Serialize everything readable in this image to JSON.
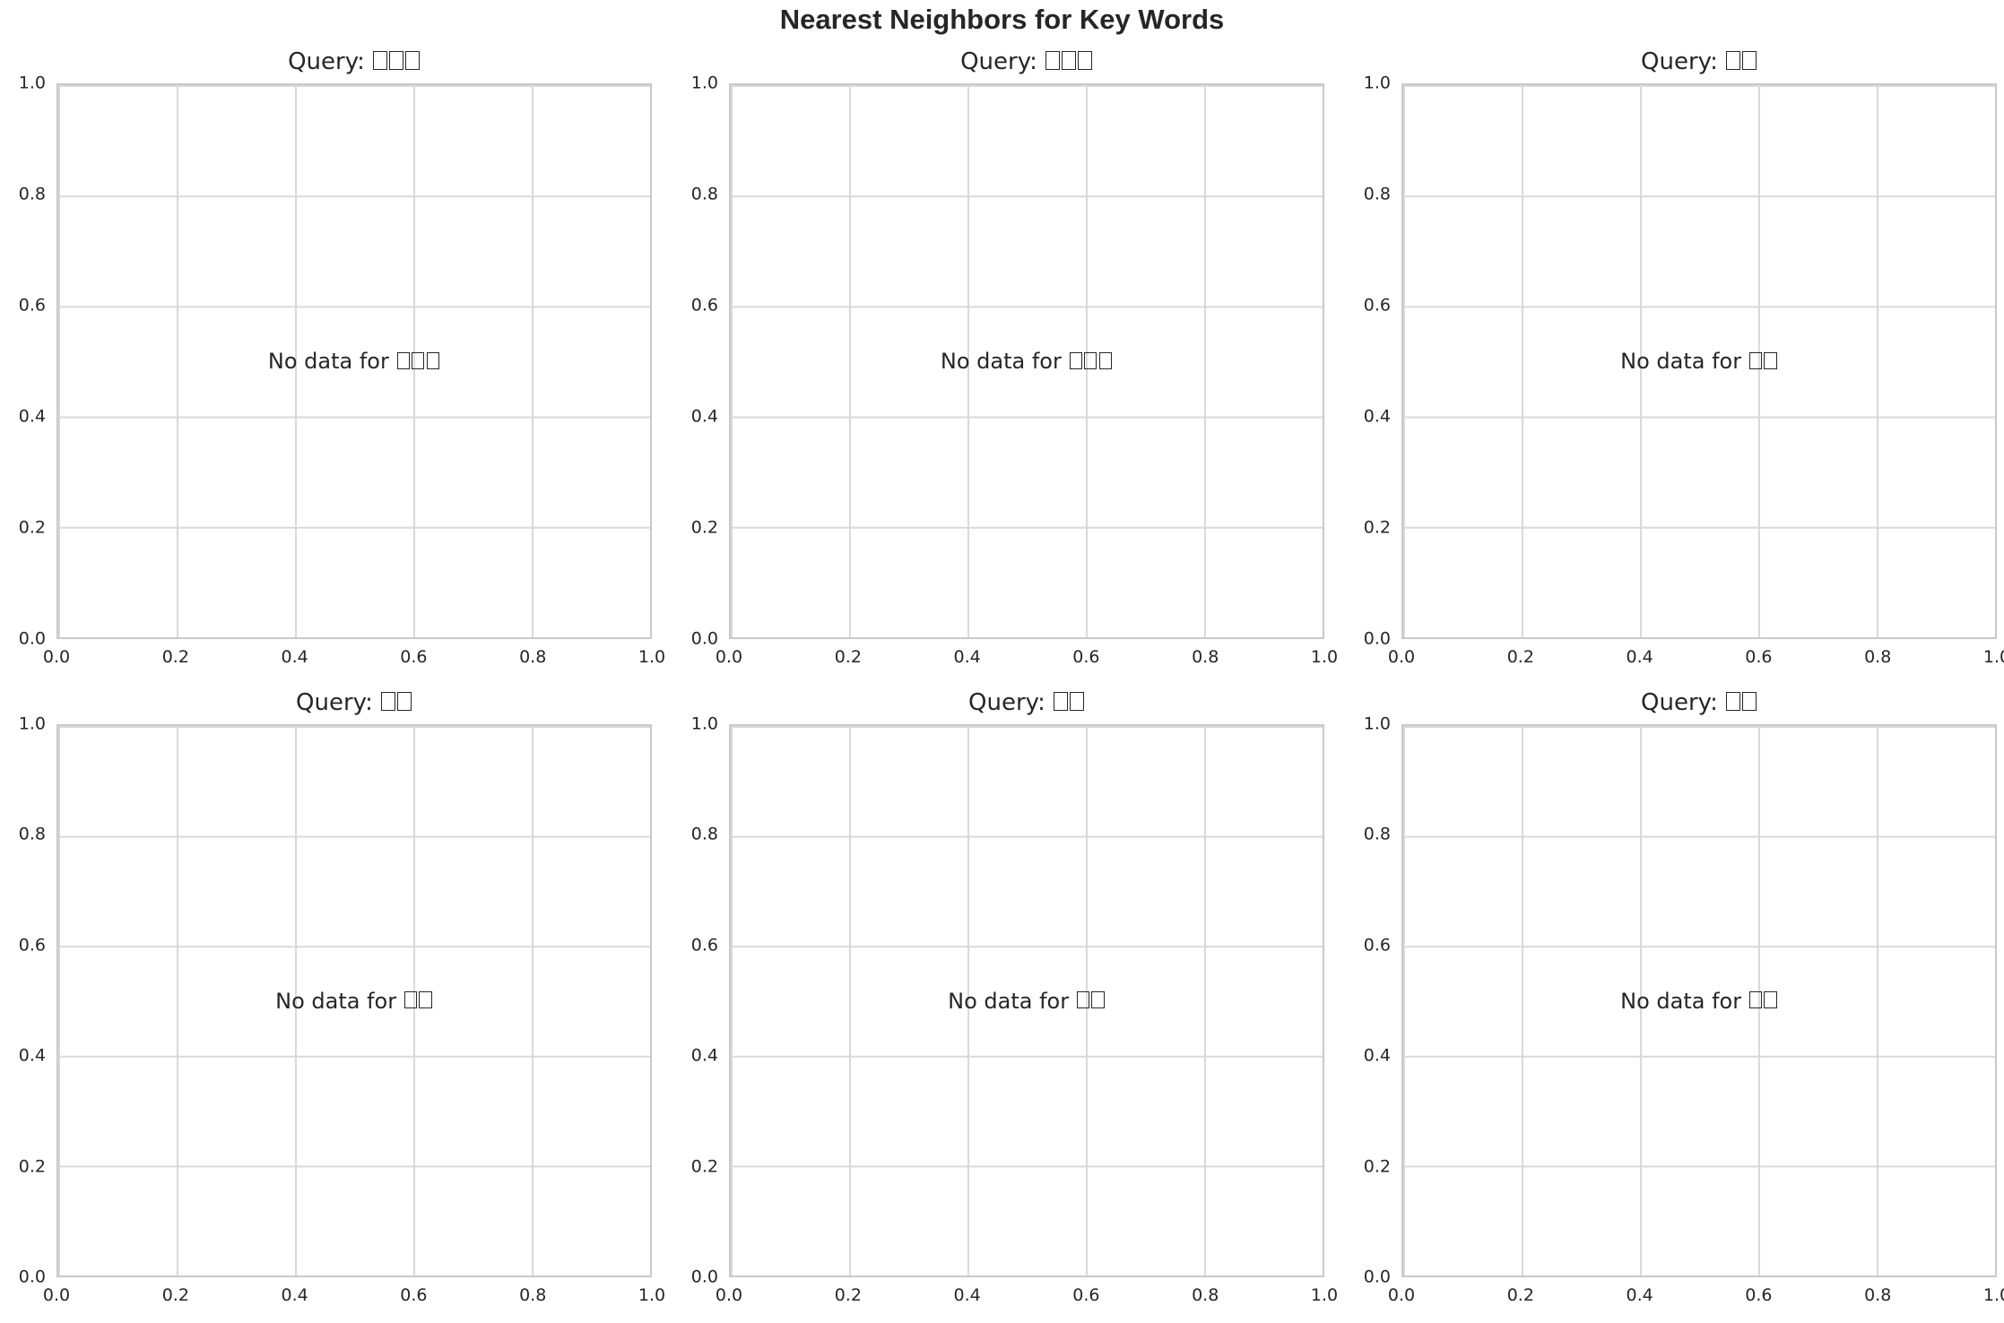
{
  "axis": {
    "yticks": [
      "1.0",
      "0.8",
      "0.6",
      "0.4",
      "0.2",
      "0.0"
    ],
    "xticks": [
      "0.0",
      "0.2",
      "0.4",
      "0.6",
      "0.8",
      "1.0"
    ]
  },
  "colors": {
    "background": "#ffffff",
    "spine": "#c9c9c9",
    "grid": "#d9d9d9",
    "text": "#262626"
  },
  "chart_data": {
    "suptitle": "Nearest Neighbors for Key Words",
    "layout": "2x3",
    "type": "scatter",
    "subplots": [
      {
        "type": "scatter",
        "title": "Query: □□□",
        "annotation": "No data for □□□",
        "points": [],
        "xlim": [
          0.0,
          1.0
        ],
        "ylim": [
          0.0,
          1.0
        ],
        "xticks": [
          0.0,
          0.2,
          0.4,
          0.6,
          0.8,
          1.0
        ],
        "yticks": [
          0.0,
          0.2,
          0.4,
          0.6,
          0.8,
          1.0
        ],
        "grid": true
      },
      {
        "type": "scatter",
        "title": "Query: □□□",
        "annotation": "No data for □□□",
        "points": [],
        "xlim": [
          0.0,
          1.0
        ],
        "ylim": [
          0.0,
          1.0
        ],
        "xticks": [
          0.0,
          0.2,
          0.4,
          0.6,
          0.8,
          1.0
        ],
        "yticks": [
          0.0,
          0.2,
          0.4,
          0.6,
          0.8,
          1.0
        ],
        "grid": true
      },
      {
        "type": "scatter",
        "title": "Query: □□",
        "annotation": "No data for □□",
        "points": [],
        "xlim": [
          0.0,
          1.0
        ],
        "ylim": [
          0.0,
          1.0
        ],
        "xticks": [
          0.0,
          0.2,
          0.4,
          0.6,
          0.8,
          1.0
        ],
        "yticks": [
          0.0,
          0.2,
          0.4,
          0.6,
          0.8,
          1.0
        ],
        "grid": true
      },
      {
        "type": "scatter",
        "title": "Query: □□",
        "annotation": "No data for □□",
        "points": [],
        "xlim": [
          0.0,
          1.0
        ],
        "ylim": [
          0.0,
          1.0
        ],
        "xticks": [
          0.0,
          0.2,
          0.4,
          0.6,
          0.8,
          1.0
        ],
        "yticks": [
          0.0,
          0.2,
          0.4,
          0.6,
          0.8,
          1.0
        ],
        "grid": true
      },
      {
        "type": "scatter",
        "title": "Query: □□",
        "annotation": "No data for □□",
        "points": [],
        "xlim": [
          0.0,
          1.0
        ],
        "ylim": [
          0.0,
          1.0
        ],
        "xticks": [
          0.0,
          0.2,
          0.4,
          0.6,
          0.8,
          1.0
        ],
        "yticks": [
          0.0,
          0.2,
          0.4,
          0.6,
          0.8,
          1.0
        ],
        "grid": true
      },
      {
        "type": "scatter",
        "title": "Query: □□",
        "annotation": "No data for □□",
        "points": [],
        "xlim": [
          0.0,
          1.0
        ],
        "ylim": [
          0.0,
          1.0
        ],
        "xticks": [
          0.0,
          0.2,
          0.4,
          0.6,
          0.8,
          1.0
        ],
        "yticks": [
          0.0,
          0.2,
          0.4,
          0.6,
          0.8,
          1.0
        ],
        "grid": true
      }
    ]
  }
}
